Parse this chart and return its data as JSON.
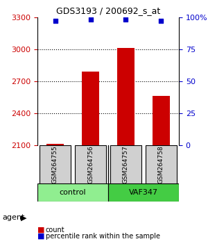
{
  "title": "GDS3193 / 200692_s_at",
  "samples": [
    "GSM264755",
    "GSM264756",
    "GSM264757",
    "GSM264758"
  ],
  "counts": [
    2115,
    2790,
    3010,
    2560
  ],
  "percentiles": [
    97,
    98,
    98,
    97
  ],
  "ylim_left": [
    2100,
    3300
  ],
  "yticks_left": [
    2100,
    2400,
    2700,
    3000,
    3300
  ],
  "ylim_right": [
    0,
    100
  ],
  "yticks_right": [
    0,
    25,
    50,
    75,
    100
  ],
  "ytick_labels_right": [
    "0",
    "25",
    "50",
    "75",
    "100%"
  ],
  "bar_color": "#cc0000",
  "dot_color": "#0000cc",
  "groups": [
    {
      "label": "control",
      "samples": [
        0,
        1
      ],
      "color": "#90ee90"
    },
    {
      "label": "VAF347",
      "samples": [
        2,
        3
      ],
      "color": "#44dd44"
    }
  ],
  "xlabel_color": "#cc0000",
  "ylabel_right_color": "#0000cc",
  "agent_label": "agent",
  "legend_items": [
    {
      "color": "#cc0000",
      "label": "count"
    },
    {
      "color": "#0000cc",
      "label": "percentile rank within the sample"
    }
  ],
  "bar_width": 0.5,
  "grid_color": "#000000",
  "grid_linestyle": "dotted"
}
